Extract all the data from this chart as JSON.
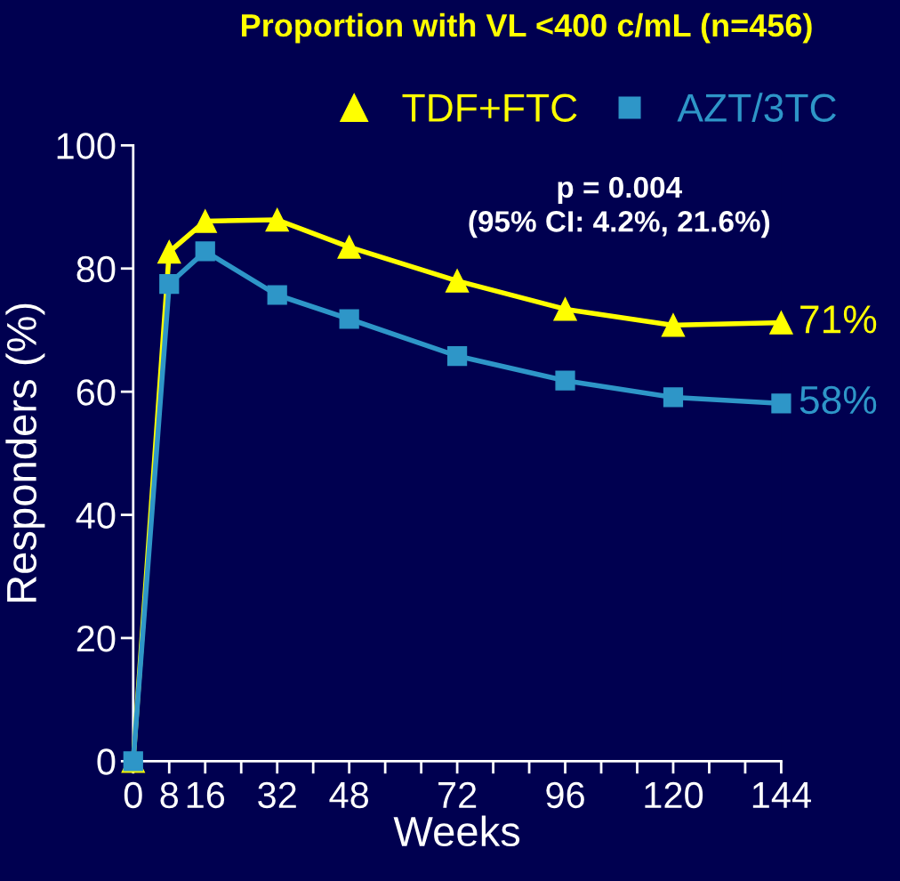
{
  "chart_data": {
    "type": "line",
    "title": "Proportion with VL <400 c/mL (n=456)",
    "xlabel": "Weeks",
    "ylabel": "Responders (%)",
    "x": [
      0,
      8,
      16,
      32,
      48,
      72,
      96,
      120,
      144
    ],
    "series": [
      {
        "name": "TDF+FTC",
        "color": "#ffff00",
        "marker": "triangle",
        "values": [
          0,
          82.7,
          87.7,
          87.9,
          83.5,
          78.0,
          73.4,
          70.8,
          71.2
        ]
      },
      {
        "name": "AZT/3TC",
        "color": "#2e96c8",
        "marker": "square",
        "values": [
          0,
          77.5,
          82.8,
          75.7,
          71.8,
          65.8,
          61.8,
          59.1,
          58.1
        ]
      }
    ],
    "annotations": [
      {
        "text": "71%",
        "x": 144,
        "y": 71.2
      },
      {
        "text": "58%",
        "x": 144,
        "y": 58.1
      },
      "p = 0.004\n(95% CI: 4.2%, 21.6%)"
    ],
    "xlim": [
      0,
      144
    ],
    "ylim": [
      0,
      100
    ],
    "xticks": [
      0,
      8,
      16,
      {
        "value": 24,
        "label": null
      },
      32,
      {
        "value": 40,
        "label": null
      },
      48,
      {
        "value": 56,
        "label": null
      },
      {
        "value": 64,
        "label": null
      },
      72,
      {
        "value": 80,
        "label": null
      },
      {
        "value": 88,
        "label": null
      },
      96,
      {
        "value": 104,
        "label": null
      },
      {
        "value": 112,
        "label": null
      },
      120,
      {
        "value": 128,
        "label": null
      },
      {
        "value": 136,
        "label": null
      },
      144
    ],
    "yticks": [
      0,
      20,
      40,
      60,
      80,
      100
    ],
    "grid": false,
    "legend": "top",
    "line_style": "solid"
  }
}
